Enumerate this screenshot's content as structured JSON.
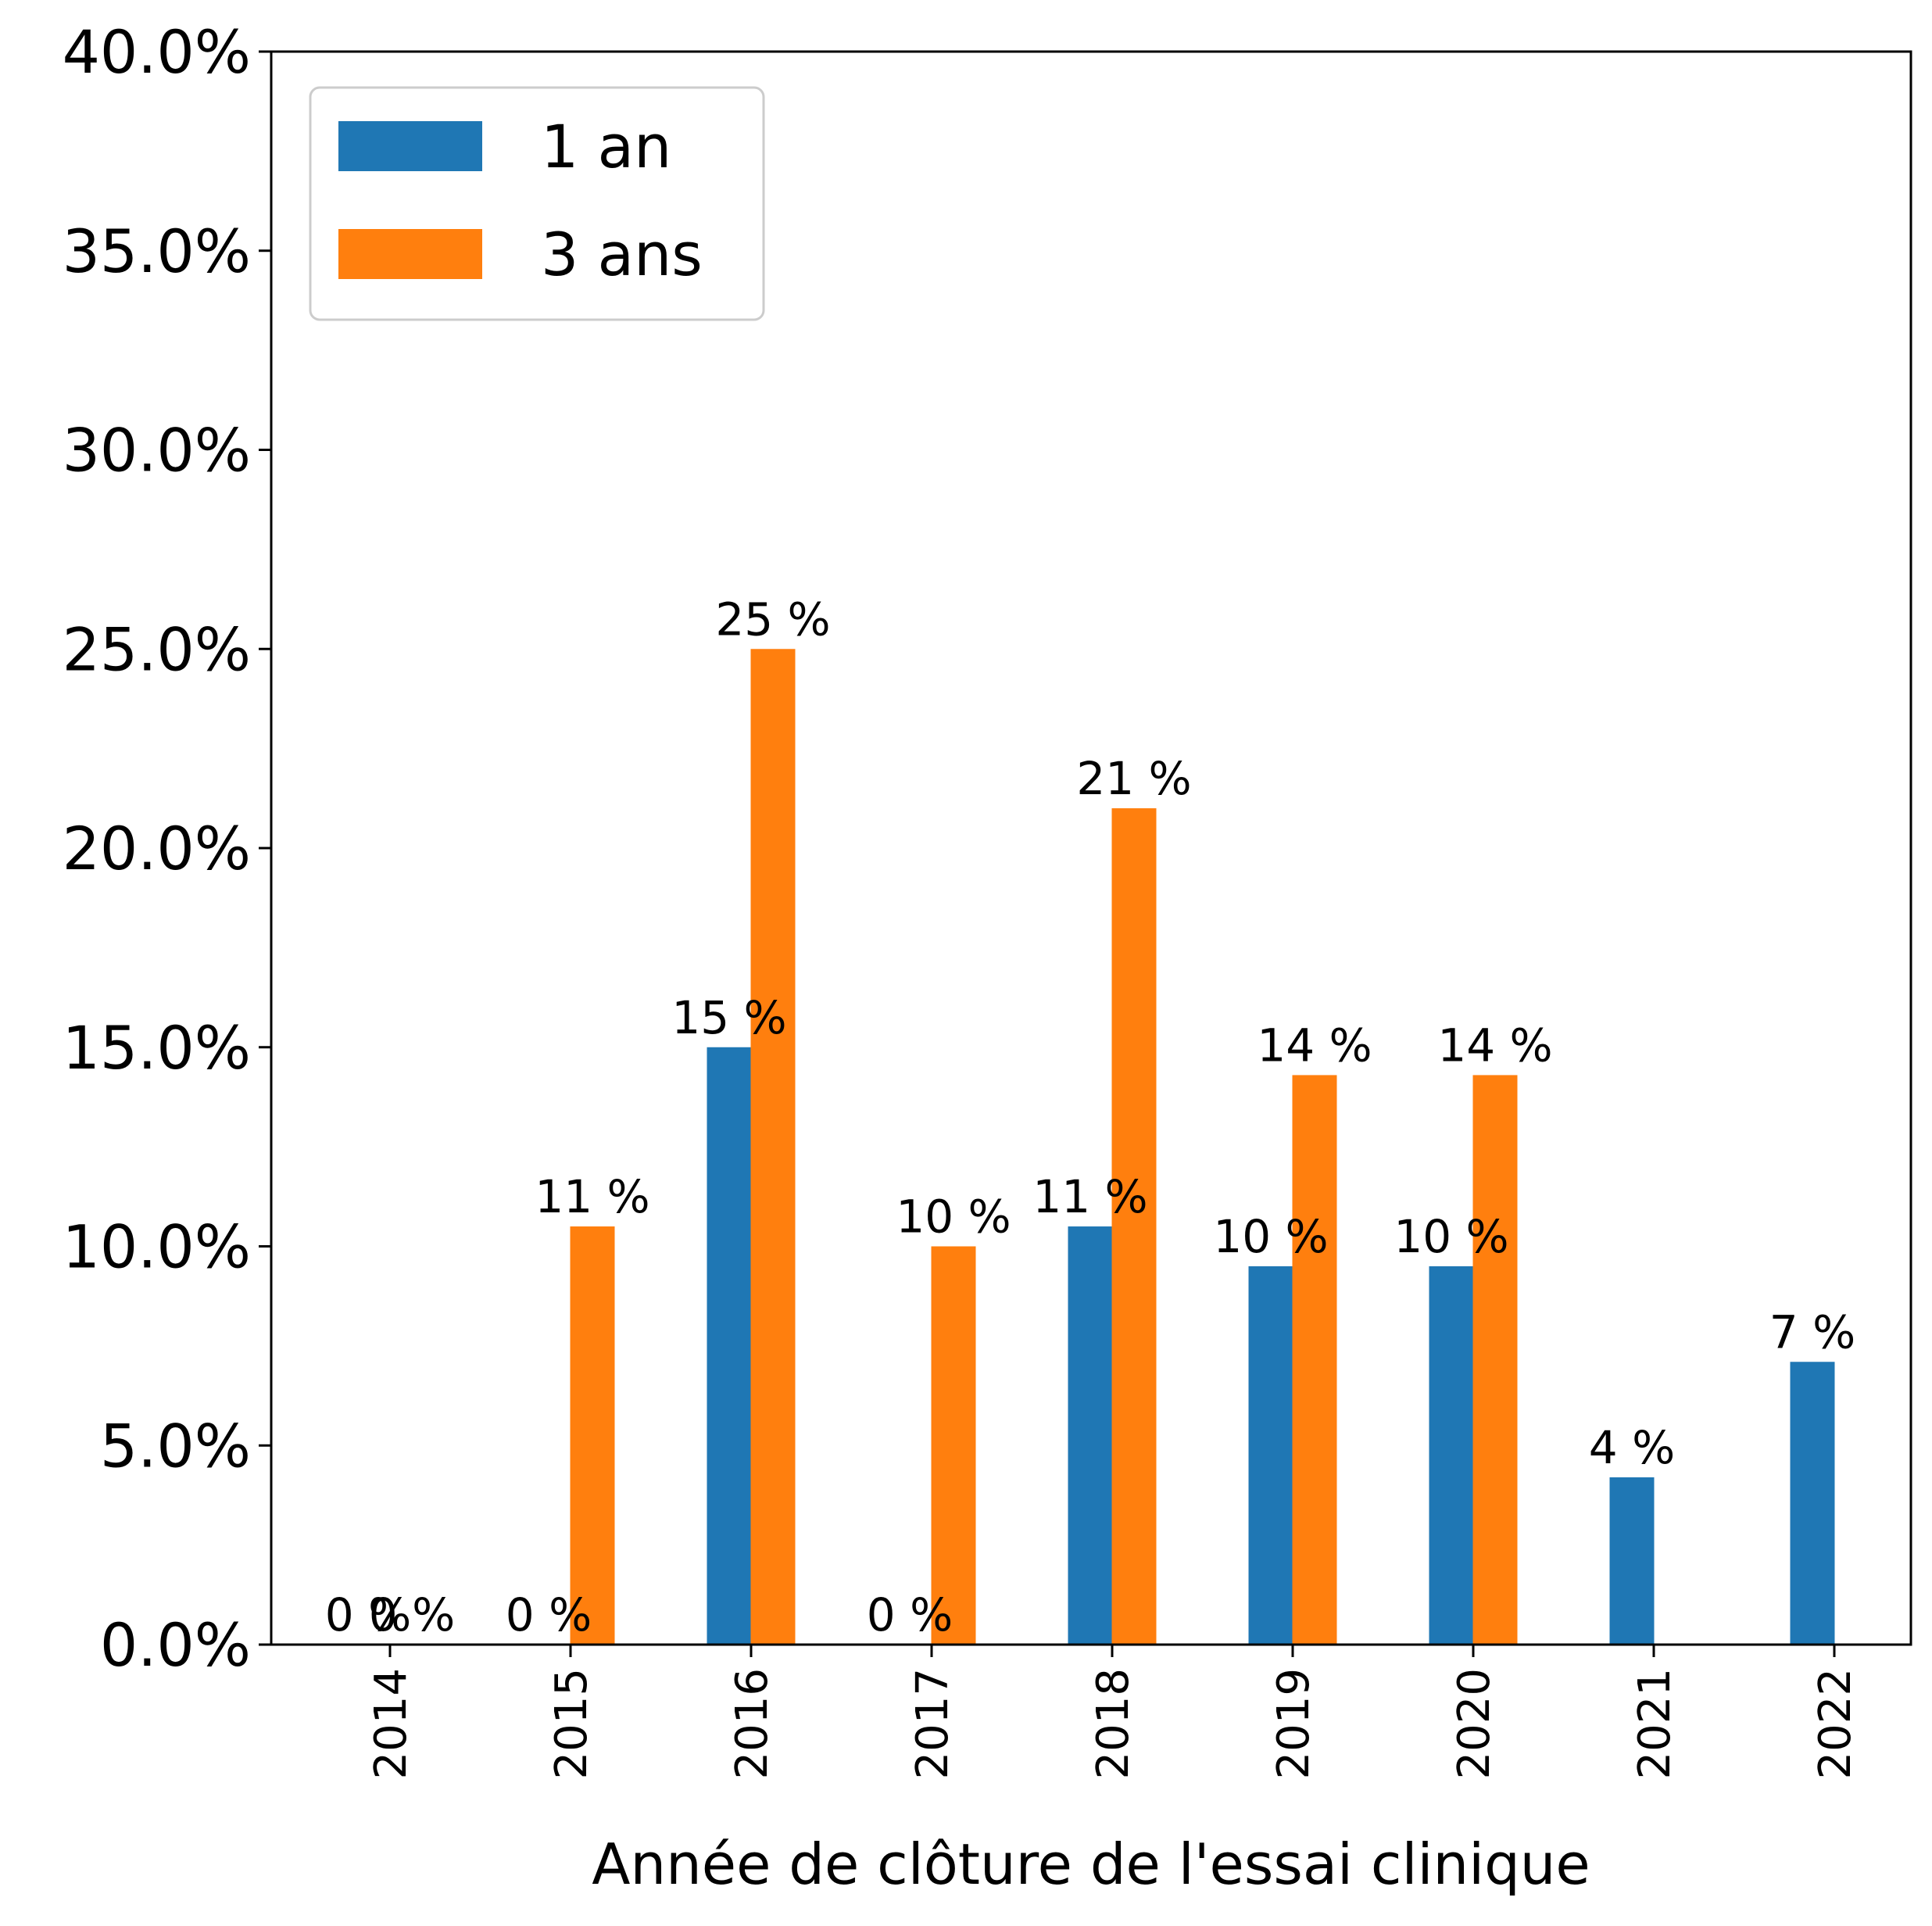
{
  "chart_data": {
    "type": "bar",
    "title": "",
    "xlabel": "Année de clôture de l'essai clinique",
    "ylabel": "",
    "ylim": [
      0,
      40
    ],
    "yticks": [
      "0.0%",
      "5.0%",
      "10.0%",
      "15.0%",
      "20.0%",
      "25.0%",
      "30.0%",
      "35.0%",
      "40.0%"
    ],
    "categories": [
      "2014",
      "2015",
      "2016",
      "2017",
      "2018",
      "2019",
      "2020",
      "2021",
      "2022"
    ],
    "series": [
      {
        "name": "1 an",
        "color": "#1f77b4",
        "values": [
          0,
          0,
          15.0,
          0,
          10.5,
          9.5,
          9.5,
          4.2,
          7.1
        ],
        "labels": [
          "0 %",
          "0 %",
          "15 %",
          "0 %",
          "11 %",
          "10 %",
          "10 %",
          "4 %",
          "7 %"
        ]
      },
      {
        "name": "3 ans",
        "color": "#ff7f0e",
        "values": [
          0,
          10.5,
          25.0,
          10.0,
          21.0,
          14.3,
          14.3,
          null,
          null
        ],
        "labels": [
          "0 %",
          "11 %",
          "25 %",
          "10 %",
          "21 %",
          "14 %",
          "14 %",
          null,
          null
        ]
      }
    ],
    "grid": false,
    "legend_position": "top-left"
  }
}
